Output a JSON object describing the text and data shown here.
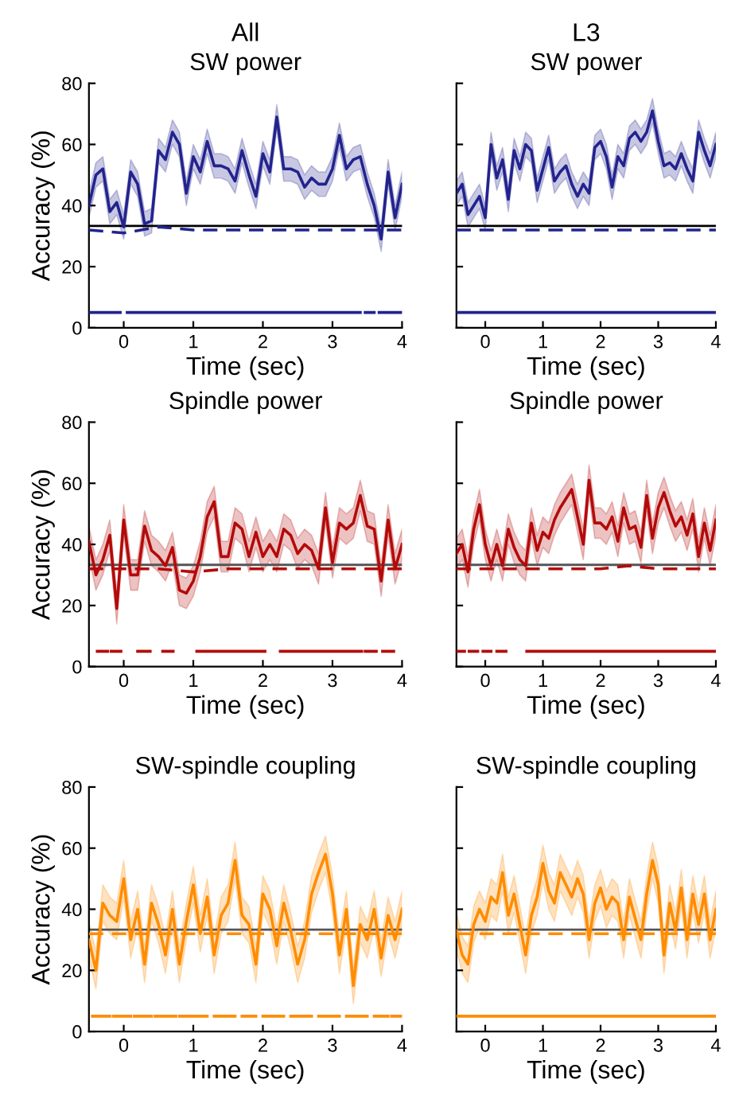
{
  "chart_data": [
    {
      "type": "line",
      "title": "SW power",
      "xlabel": "Time (sec)",
      "ylabel": "Accuracy (%)",
      "annotations": [
        "All"
      ],
      "x": [
        -0.5,
        -0.4,
        -0.3,
        -0.2,
        -0.1,
        0,
        0.1,
        0.2,
        0.3,
        0.4,
        0.5,
        0.6,
        0.7,
        0.8,
        0.9,
        1,
        1.1,
        1.2,
        1.3,
        1.4,
        1.5,
        1.6,
        1.7,
        1.8,
        1.9,
        2,
        2.1,
        2.2,
        2.3,
        2.4,
        2.5,
        2.6,
        2.7,
        2.8,
        2.9,
        3,
        3.1,
        3.2,
        3.3,
        3.4,
        3.5,
        3.6,
        3.7,
        3.8,
        3.9,
        4
      ],
      "xlim": [
        -0.5,
        4
      ],
      "xticks": [
        0,
        1,
        2,
        3,
        4
      ],
      "ylim": [
        0,
        80
      ],
      "yticks": [
        0,
        20,
        40,
        60,
        80
      ],
      "ref_lines": [
        {
          "axis": "y",
          "value": 33.3,
          "color": "#000000"
        }
      ],
      "series": [
        {
          "color": "#23238e",
          "line_style": "solid",
          "values": [
            40,
            50,
            52,
            38,
            41,
            33,
            51,
            47,
            34,
            35,
            58,
            55,
            64,
            60,
            44,
            56,
            51,
            61,
            53,
            53,
            52,
            48,
            58,
            50,
            43,
            57,
            51,
            69,
            52,
            52,
            51,
            46,
            49,
            47,
            47,
            52,
            63,
            52,
            55,
            56,
            47,
            40,
            29,
            51,
            36,
            47
          ],
          "lower": [
            36,
            46,
            48,
            34,
            37,
            29,
            47,
            43,
            30,
            31,
            54,
            51,
            60,
            56,
            40,
            52,
            47,
            57,
            49,
            49,
            48,
            44,
            54,
            46,
            39,
            53,
            47,
            65,
            48,
            48,
            47,
            42,
            45,
            43,
            43,
            48,
            59,
            48,
            51,
            52,
            43,
            36,
            25,
            47,
            32,
            43
          ],
          "upper": [
            44,
            54,
            56,
            42,
            45,
            37,
            55,
            51,
            38,
            39,
            62,
            59,
            68,
            64,
            48,
            60,
            55,
            65,
            57,
            57,
            56,
            52,
            62,
            54,
            47,
            61,
            55,
            73,
            56,
            56,
            55,
            50,
            53,
            51,
            51,
            56,
            67,
            56,
            59,
            60,
            51,
            44,
            33,
            55,
            40,
            51
          ]
        },
        {
          "color": "#23238e",
          "line_style": "dashed",
          "x": [
            -0.5,
            0,
            0.5,
            1,
            1.5,
            2,
            2.5,
            3,
            3.5,
            4
          ],
          "values": [
            32,
            31,
            33,
            32,
            32,
            32,
            32,
            32,
            32,
            32
          ]
        },
        {
          "color": "#23238e",
          "line_style": "solid",
          "x": [
            -0.5,
            -0.05,
            0,
            0.05,
            3.4,
            3.44,
            3.47,
            3.6,
            3.64,
            3.67,
            4
          ],
          "values": [
            5,
            5,
            null,
            5,
            5,
            null,
            5,
            5,
            null,
            5,
            5
          ]
        }
      ]
    },
    {
      "type": "line",
      "title": "SW power",
      "xlabel": "Time (sec)",
      "annotations": [
        "L3"
      ],
      "tick_labels": "x",
      "x": [
        -0.5,
        -0.4,
        -0.3,
        -0.2,
        -0.1,
        0,
        0.1,
        0.2,
        0.3,
        0.4,
        0.5,
        0.6,
        0.7,
        0.8,
        0.9,
        1,
        1.1,
        1.2,
        1.3,
        1.4,
        1.5,
        1.6,
        1.7,
        1.8,
        1.9,
        2,
        2.1,
        2.2,
        2.3,
        2.4,
        2.5,
        2.6,
        2.7,
        2.8,
        2.9,
        3,
        3.1,
        3.2,
        3.3,
        3.4,
        3.5,
        3.6,
        3.7,
        3.8,
        3.9,
        4
      ],
      "xlim": [
        -0.5,
        4
      ],
      "xticks": [
        0,
        1,
        2,
        3,
        4
      ],
      "ylim": [
        0,
        80
      ],
      "yticks": [
        0,
        20,
        40,
        60,
        80
      ],
      "ref_lines": [
        {
          "axis": "y",
          "value": 33.3,
          "color": "#000000"
        }
      ],
      "series": [
        {
          "color": "#23238e",
          "line_style": "solid",
          "values": [
            44,
            47,
            37,
            40,
            43,
            36,
            60,
            49,
            55,
            42,
            58,
            52,
            60,
            58,
            45,
            52,
            59,
            48,
            51,
            53,
            47,
            43,
            47,
            44,
            59,
            61,
            56,
            46,
            56,
            53,
            62,
            64,
            61,
            64,
            71,
            61,
            53,
            54,
            52,
            57,
            52,
            48,
            64,
            58,
            53,
            60
          ],
          "lower": [
            40,
            43,
            33,
            36,
            39,
            32,
            56,
            45,
            51,
            38,
            54,
            48,
            56,
            54,
            41,
            48,
            55,
            44,
            47,
            49,
            43,
            39,
            43,
            40,
            55,
            57,
            52,
            42,
            52,
            49,
            58,
            60,
            57,
            60,
            67,
            57,
            49,
            50,
            48,
            53,
            48,
            44,
            60,
            54,
            49,
            56
          ],
          "upper": [
            48,
            51,
            41,
            44,
            47,
            40,
            64,
            53,
            59,
            46,
            62,
            56,
            64,
            62,
            49,
            56,
            63,
            52,
            55,
            57,
            51,
            47,
            51,
            48,
            63,
            65,
            60,
            50,
            60,
            57,
            66,
            68,
            65,
            68,
            75,
            65,
            57,
            58,
            56,
            61,
            56,
            52,
            68,
            62,
            57,
            64
          ]
        },
        {
          "color": "#23238e",
          "line_style": "dashed",
          "x": [
            -0.5,
            0,
            0.5,
            1,
            1.5,
            2,
            2.5,
            3,
            3.5,
            4
          ],
          "values": [
            32,
            32,
            32,
            32,
            32,
            32,
            32,
            32,
            32,
            32
          ]
        },
        {
          "color": "#23238e",
          "line_style": "solid",
          "x": [
            -0.5,
            4
          ],
          "values": [
            5,
            5
          ]
        }
      ]
    },
    {
      "type": "line",
      "title": "Spindle power",
      "xlabel": "Time (sec)",
      "ylabel": "Accuracy (%)",
      "x": [
        -0.5,
        -0.4,
        -0.3,
        -0.2,
        -0.1,
        0,
        0.1,
        0.2,
        0.3,
        0.4,
        0.5,
        0.6,
        0.7,
        0.8,
        0.9,
        1,
        1.1,
        1.2,
        1.3,
        1.4,
        1.5,
        1.6,
        1.7,
        1.8,
        1.9,
        2,
        2.1,
        2.2,
        2.3,
        2.4,
        2.5,
        2.6,
        2.7,
        2.8,
        2.9,
        3,
        3.1,
        3.2,
        3.3,
        3.4,
        3.5,
        3.6,
        3.7,
        3.8,
        3.9,
        4
      ],
      "xlim": [
        -0.5,
        4
      ],
      "xticks": [
        0,
        1,
        2,
        3,
        4
      ],
      "ylim": [
        0,
        80
      ],
      "yticks": [
        0,
        20,
        40,
        60,
        80
      ],
      "ref_lines": [
        {
          "axis": "y",
          "value": 33.3,
          "color": "#555555"
        }
      ],
      "series": [
        {
          "color": "#b40a0a",
          "line_style": "solid",
          "values": [
            41,
            30,
            35,
            43,
            19,
            48,
            30,
            30,
            46,
            38,
            36,
            33,
            39,
            25,
            24,
            28,
            36,
            49,
            54,
            36,
            36,
            47,
            45,
            36,
            44,
            36,
            40,
            36,
            45,
            43,
            37,
            40,
            38,
            32,
            52,
            34,
            47,
            45,
            47,
            56,
            46,
            45,
            28,
            48,
            32,
            40
          ],
          "lower": [
            36,
            25,
            30,
            38,
            14,
            43,
            25,
            25,
            41,
            33,
            31,
            28,
            34,
            20,
            19,
            23,
            31,
            44,
            49,
            31,
            31,
            42,
            40,
            31,
            39,
            31,
            35,
            31,
            40,
            38,
            32,
            35,
            33,
            27,
            47,
            29,
            42,
            40,
            42,
            51,
            41,
            40,
            23,
            43,
            27,
            35
          ],
          "upper": [
            46,
            35,
            40,
            48,
            24,
            53,
            35,
            35,
            51,
            43,
            41,
            38,
            44,
            30,
            29,
            33,
            41,
            54,
            59,
            41,
            41,
            52,
            50,
            41,
            49,
            41,
            45,
            41,
            50,
            48,
            42,
            45,
            43,
            37,
            57,
            39,
            52,
            50,
            52,
            61,
            51,
            50,
            33,
            53,
            37,
            45
          ]
        },
        {
          "color": "#b40a0a",
          "line_style": "dashed",
          "x": [
            -0.5,
            0,
            0.5,
            1,
            1.5,
            2,
            2.5,
            3,
            3.5,
            4
          ],
          "values": [
            32,
            32,
            32,
            31,
            32,
            32,
            32,
            32,
            32,
            32
          ]
        },
        {
          "color": "#b40a0a",
          "line_style": "solid",
          "x": [
            -0.38,
            -0.23,
            -0.2,
            -0.18,
            -0.04,
            0.08,
            0.2,
            0.38,
            0.47,
            0.56,
            0.71,
            0.88,
            1.05,
            2.03,
            2.14,
            2.25,
            3.42,
            3.45,
            3.47,
            3.63,
            3.68,
            3.72,
            3.88
          ],
          "values": [
            5,
            5,
            null,
            5,
            5,
            null,
            5,
            5,
            null,
            5,
            5,
            null,
            5,
            5,
            null,
            5,
            5,
            null,
            5,
            5,
            null,
            5,
            5
          ]
        }
      ]
    },
    {
      "type": "line",
      "title": "Spindle power",
      "xlabel": "Time (sec)",
      "tick_labels": "x",
      "x": [
        -0.5,
        -0.4,
        -0.3,
        -0.2,
        -0.1,
        0,
        0.1,
        0.2,
        0.3,
        0.4,
        0.5,
        0.6,
        0.7,
        0.8,
        0.9,
        1,
        1.1,
        1.2,
        1.3,
        1.4,
        1.5,
        1.6,
        1.7,
        1.8,
        1.9,
        2,
        2.1,
        2.2,
        2.3,
        2.4,
        2.5,
        2.6,
        2.7,
        2.8,
        2.9,
        3,
        3.1,
        3.2,
        3.3,
        3.4,
        3.5,
        3.6,
        3.7,
        3.8,
        3.9,
        4
      ],
      "xlim": [
        -0.5,
        4
      ],
      "xticks": [
        0,
        1,
        2,
        3,
        4
      ],
      "ylim": [
        0,
        80
      ],
      "yticks": [
        0,
        20,
        40,
        60,
        80
      ],
      "ref_lines": [
        {
          "axis": "y",
          "value": 33.3,
          "color": "#555555"
        }
      ],
      "series": [
        {
          "color": "#b40a0a",
          "line_style": "solid",
          "values": [
            37,
            40,
            31,
            45,
            53,
            40,
            33,
            40,
            33,
            45,
            39,
            35,
            33,
            47,
            38,
            44,
            42,
            48,
            52,
            55,
            58,
            49,
            40,
            61,
            47,
            47,
            45,
            49,
            41,
            52,
            45,
            46,
            39,
            56,
            42,
            52,
            57,
            51,
            46,
            49,
            43,
            50,
            36,
            47,
            38,
            48
          ],
          "lower": [
            32,
            35,
            26,
            40,
            48,
            35,
            28,
            35,
            28,
            40,
            34,
            30,
            28,
            42,
            33,
            39,
            37,
            43,
            47,
            50,
            53,
            44,
            35,
            56,
            42,
            42,
            40,
            44,
            36,
            47,
            40,
            41,
            34,
            51,
            37,
            47,
            52,
            46,
            41,
            44,
            38,
            45,
            31,
            42,
            33,
            43
          ],
          "upper": [
            42,
            45,
            36,
            50,
            58,
            45,
            38,
            45,
            38,
            50,
            44,
            40,
            38,
            52,
            43,
            49,
            47,
            53,
            57,
            60,
            63,
            54,
            45,
            66,
            52,
            52,
            50,
            54,
            46,
            57,
            50,
            51,
            44,
            61,
            47,
            57,
            62,
            56,
            51,
            54,
            48,
            55,
            41,
            52,
            43,
            53
          ]
        },
        {
          "color": "#b40a0a",
          "line_style": "dashed",
          "x": [
            -0.5,
            0,
            0.5,
            1,
            1.5,
            2,
            2.5,
            3,
            3.5,
            4
          ],
          "values": [
            32,
            32,
            32,
            32,
            32,
            32,
            33,
            32,
            32,
            32
          ]
        },
        {
          "color": "#b40a0a",
          "line_style": "solid",
          "x": [
            -0.5,
            -0.36,
            -0.32,
            -0.28,
            -0.13,
            -0.08,
            -0.04,
            0.1,
            0.15,
            0.2,
            0.36,
            0.54,
            0.72,
            4
          ],
          "values": [
            5,
            5,
            null,
            5,
            5,
            null,
            5,
            5,
            null,
            5,
            5,
            null,
            5,
            5
          ]
        }
      ]
    },
    {
      "type": "line",
      "title": "SW-spindle coupling",
      "xlabel": "Time (sec)",
      "ylabel": "Accuracy (%)",
      "x": [
        -0.5,
        -0.4,
        -0.3,
        -0.2,
        -0.1,
        0,
        0.1,
        0.2,
        0.3,
        0.4,
        0.5,
        0.6,
        0.7,
        0.8,
        0.9,
        1,
        1.1,
        1.2,
        1.3,
        1.4,
        1.5,
        1.6,
        1.7,
        1.8,
        1.9,
        2,
        2.1,
        2.2,
        2.3,
        2.4,
        2.5,
        2.6,
        2.7,
        2.8,
        2.9,
        3,
        3.1,
        3.2,
        3.3,
        3.4,
        3.5,
        3.6,
        3.7,
        3.8,
        3.9,
        4
      ],
      "xlim": [
        -0.5,
        4
      ],
      "xticks": [
        0,
        1,
        2,
        3,
        4
      ],
      "ylim": [
        0,
        80
      ],
      "yticks": [
        0,
        20,
        40,
        60,
        80
      ],
      "ref_lines": [
        {
          "axis": "y",
          "value": 33.3,
          "color": "#555555"
        }
      ],
      "series": [
        {
          "color": "#ff8c00",
          "line_style": "solid",
          "values": [
            30,
            20,
            42,
            38,
            36,
            50,
            30,
            40,
            22,
            42,
            35,
            25,
            40,
            22,
            36,
            48,
            32,
            44,
            25,
            38,
            42,
            56,
            38,
            35,
            22,
            45,
            40,
            28,
            42,
            33,
            22,
            30,
            45,
            52,
            58,
            45,
            25,
            40,
            15,
            35,
            30,
            40,
            24,
            38,
            30,
            40
          ],
          "lower": [
            24,
            14,
            36,
            32,
            30,
            44,
            24,
            34,
            16,
            36,
            29,
            19,
            34,
            16,
            30,
            42,
            26,
            38,
            19,
            32,
            36,
            50,
            32,
            29,
            16,
            39,
            34,
            22,
            36,
            27,
            16,
            24,
            39,
            46,
            52,
            39,
            19,
            34,
            9,
            29,
            24,
            34,
            18,
            32,
            24,
            34
          ],
          "upper": [
            36,
            26,
            48,
            44,
            42,
            56,
            36,
            46,
            28,
            48,
            41,
            31,
            46,
            28,
            42,
            54,
            38,
            50,
            31,
            44,
            48,
            62,
            44,
            41,
            28,
            51,
            46,
            34,
            48,
            39,
            28,
            36,
            51,
            58,
            64,
            51,
            31,
            46,
            21,
            41,
            36,
            46,
            30,
            44,
            36,
            46
          ]
        },
        {
          "color": "#ff8c00",
          "line_style": "dashed",
          "x": [
            -0.5,
            0,
            0.5,
            1,
            1.5,
            2,
            2.5,
            3,
            3.5,
            4
          ],
          "values": [
            32,
            32,
            32,
            32,
            32,
            32,
            32,
            32,
            32,
            32
          ]
        },
        {
          "color": "#ff8c00",
          "line_style": "solid",
          "x": [
            -0.45,
            -0.2,
            -0.18,
            -0.15,
            0.1,
            0.12,
            0.15,
            0.4,
            0.42,
            0.45,
            0.75,
            0.78,
            0.8,
            1.2,
            1.25,
            1.3,
            1.6,
            1.65,
            1.7,
            1.9,
            1.95,
            2.0,
            2.3,
            2.35,
            2.4,
            2.7,
            2.75,
            2.8,
            3.1,
            3.15,
            3.2,
            3.5,
            3.55,
            3.6,
            3.8,
            3.82,
            3.85,
            4
          ],
          "values": [
            5,
            5,
            null,
            5,
            5,
            null,
            5,
            5,
            null,
            5,
            5,
            null,
            5,
            5,
            null,
            5,
            5,
            null,
            5,
            5,
            null,
            5,
            5,
            null,
            5,
            5,
            null,
            5,
            5,
            null,
            5,
            5,
            null,
            5,
            5,
            null,
            5,
            5
          ]
        }
      ]
    },
    {
      "type": "line",
      "title": "SW-spindle coupling",
      "xlabel": "Time (sec)",
      "tick_labels": "x",
      "x": [
        -0.5,
        -0.4,
        -0.3,
        -0.2,
        -0.1,
        0,
        0.1,
        0.2,
        0.3,
        0.4,
        0.5,
        0.6,
        0.7,
        0.8,
        0.9,
        1,
        1.1,
        1.2,
        1.3,
        1.4,
        1.5,
        1.6,
        1.7,
        1.8,
        1.9,
        2,
        2.1,
        2.2,
        2.3,
        2.4,
        2.5,
        2.6,
        2.7,
        2.8,
        2.9,
        3,
        3.1,
        3.2,
        3.3,
        3.4,
        3.5,
        3.6,
        3.7,
        3.8,
        3.9,
        4
      ],
      "xlim": [
        -0.5,
        4
      ],
      "xticks": [
        0,
        1,
        2,
        3,
        4
      ],
      "ylim": [
        0,
        80
      ],
      "yticks": [
        0,
        20,
        40,
        60,
        80
      ],
      "ref_lines": [
        {
          "axis": "y",
          "value": 33.3,
          "color": "#555555"
        }
      ],
      "series": [
        {
          "color": "#ff8c00",
          "line_style": "solid",
          "values": [
            33,
            25,
            22,
            35,
            40,
            36,
            44,
            42,
            52,
            38,
            45,
            35,
            25,
            38,
            44,
            55,
            46,
            42,
            52,
            48,
            44,
            50,
            45,
            30,
            42,
            47,
            40,
            44,
            42,
            30,
            44,
            37,
            30,
            45,
            56,
            48,
            25,
            42,
            33,
            47,
            30,
            45,
            35,
            45,
            30,
            40
          ],
          "lower": [
            27,
            19,
            16,
            29,
            34,
            30,
            38,
            36,
            46,
            32,
            39,
            29,
            19,
            32,
            38,
            49,
            40,
            36,
            46,
            42,
            38,
            44,
            39,
            24,
            36,
            41,
            34,
            38,
            36,
            24,
            38,
            31,
            24,
            39,
            50,
            42,
            19,
            36,
            27,
            41,
            24,
            39,
            29,
            39,
            24,
            34
          ],
          "upper": [
            39,
            31,
            28,
            41,
            46,
            42,
            50,
            48,
            58,
            44,
            51,
            41,
            31,
            44,
            50,
            61,
            52,
            48,
            58,
            54,
            50,
            56,
            51,
            36,
            48,
            53,
            46,
            50,
            48,
            36,
            50,
            43,
            36,
            51,
            62,
            54,
            31,
            48,
            39,
            53,
            36,
            51,
            41,
            51,
            36,
            46
          ]
        },
        {
          "color": "#ff8c00",
          "line_style": "dashed",
          "x": [
            -0.5,
            0,
            0.5,
            1,
            1.5,
            2,
            2.5,
            3,
            3.5,
            4
          ],
          "values": [
            32,
            32,
            32,
            32,
            32,
            32,
            32,
            32,
            32,
            32
          ]
        },
        {
          "color": "#ff8c00",
          "line_style": "solid",
          "x": [
            -0.5,
            -0.35,
            -0.32,
            -0.3,
            0.6,
            0.62,
            0.65,
            1.8,
            1.82,
            1.85,
            2.8,
            2.82,
            2.85,
            4
          ],
          "values": [
            5,
            5,
            null,
            5,
            5,
            null,
            5,
            5,
            null,
            5,
            5,
            null,
            5,
            5
          ]
        }
      ]
    }
  ]
}
